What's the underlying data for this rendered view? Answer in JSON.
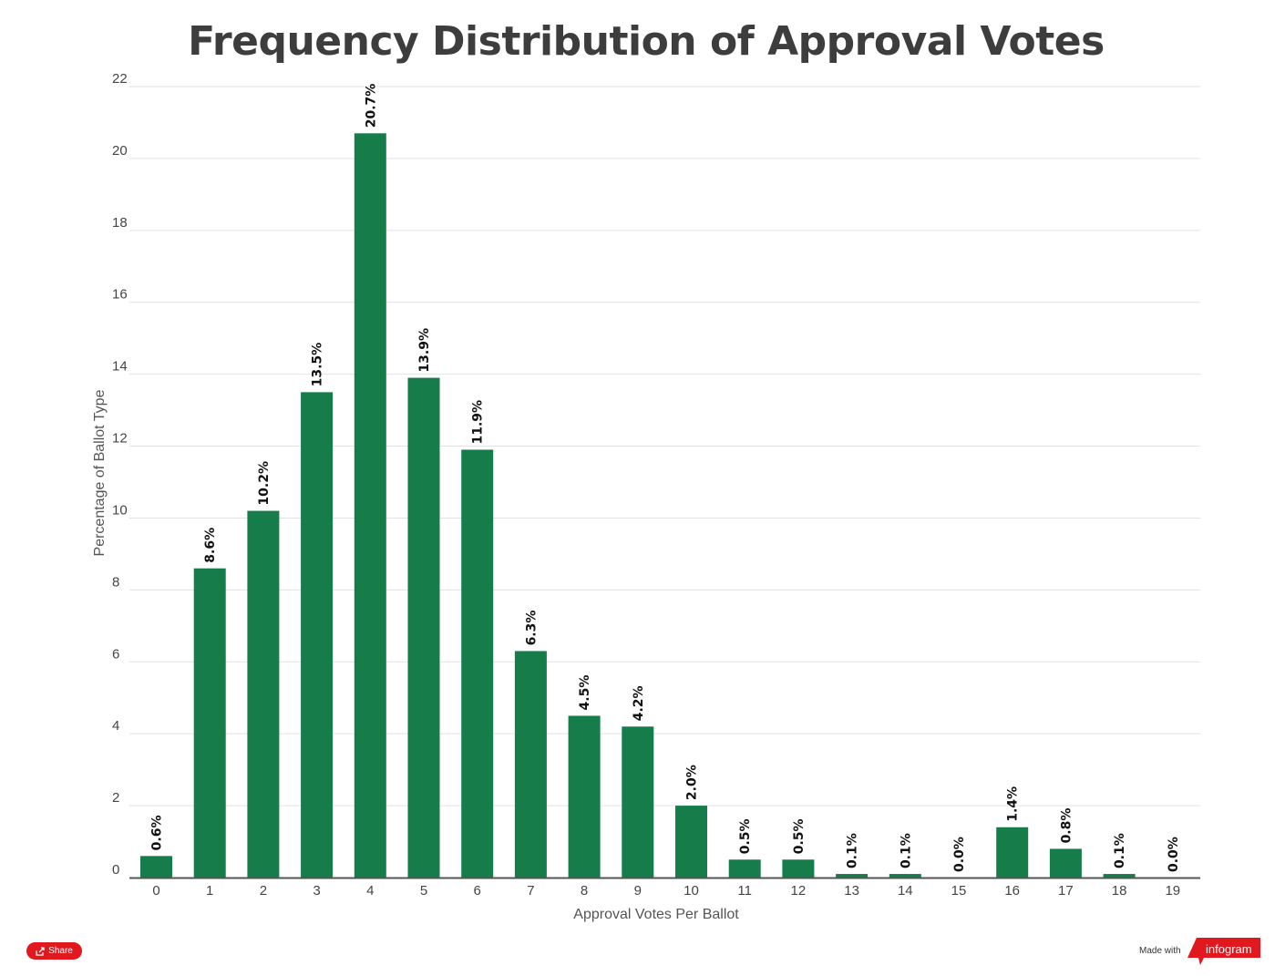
{
  "chart_data": {
    "type": "bar",
    "title": "Frequency Distribution of Approval Votes",
    "xlabel": "Approval Votes Per Ballot",
    "ylabel": "Percentage of Ballot Type",
    "categories": [
      "0",
      "1",
      "2",
      "3",
      "4",
      "5",
      "6",
      "7",
      "8",
      "9",
      "10",
      "11",
      "12",
      "13",
      "14",
      "15",
      "16",
      "17",
      "18",
      "19"
    ],
    "values": [
      0.6,
      8.6,
      10.2,
      13.5,
      20.7,
      13.9,
      11.9,
      6.3,
      4.5,
      4.2,
      2.0,
      0.5,
      0.5,
      0.1,
      0.1,
      0.0,
      1.4,
      0.8,
      0.1,
      0.0
    ],
    "data_labels": [
      "0.6%",
      "8.6%",
      "10.2%",
      "13.5%",
      "20.7%",
      "13.9%",
      "11.9%",
      "6.3%",
      "4.5%",
      "4.2%",
      "2.0%",
      "0.5%",
      "0.5%",
      "0.1%",
      "0.1%",
      "0.0%",
      "1.4%",
      "0.8%",
      "0.1%",
      "0.0%"
    ],
    "ylim": [
      0,
      22
    ],
    "yticks": [
      0,
      2,
      4,
      6,
      8,
      10,
      12,
      14,
      16,
      18,
      20,
      22
    ],
    "grid": true,
    "bar_color": "#157c4a"
  },
  "footer": {
    "share_label": "Share",
    "made_with": "Made with",
    "brand": "infogram",
    "brand_color": "#e1191f"
  }
}
